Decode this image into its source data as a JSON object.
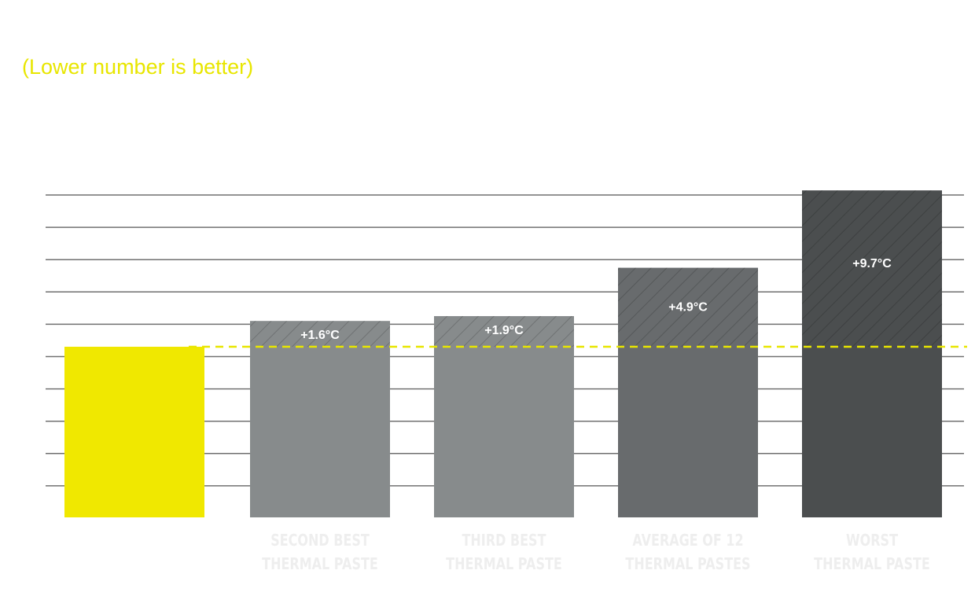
{
  "subtitle": "(Lower number is better)",
  "chart_data": {
    "type": "bar",
    "subtitle": "(Lower number is better)",
    "unit": "°C",
    "categories": [
      "",
      "SECOND BEST THERMAL PASTE",
      "THIRD BEST THERMAL PASTE",
      "AVERAGE OF 12 THERMAL PASTES",
      "WORST THERMAL PASTE"
    ],
    "category_lines": [
      [
        ""
      ],
      [
        "SECOND BEST",
        "THERMAL PASTE"
      ],
      [
        "THIRD BEST",
        "THERMAL PASTE"
      ],
      [
        "AVERAGE OF 12",
        "THERMAL PASTES"
      ],
      [
        "WORST",
        "THERMAL PASTE"
      ]
    ],
    "values": [
      0,
      1.6,
      1.9,
      4.9,
      9.7
    ],
    "data_labels": [
      "",
      "+1.6°C",
      "+1.9°C",
      "+4.9°C",
      "+9.7°C"
    ],
    "colors": [
      "#f0e800",
      "#878b8c",
      "#878b8c",
      "#686b6d",
      "#4b4e4f"
    ],
    "reference_line": {
      "style": "dashed",
      "color": "#e8e600",
      "value": 0
    },
    "grid": true,
    "legend": "none"
  }
}
